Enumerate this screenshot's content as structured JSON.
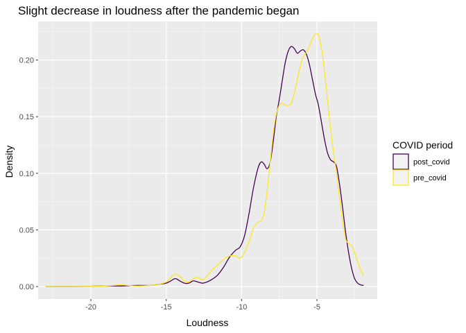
{
  "chart_data": {
    "type": "area",
    "title": "Slight decrease in loudness after the pandemic began",
    "xlabel": "Loudness",
    "ylabel": "Density",
    "xlim": [
      -23.5,
      -1.0
    ],
    "ylim": [
      -0.011,
      0.234
    ],
    "x_ticks": [
      -20,
      -15,
      -10,
      -5
    ],
    "x_tick_labels": [
      "-20",
      "-15",
      "-10",
      "-5"
    ],
    "y_ticks": [
      0.0,
      0.05,
      0.1,
      0.15,
      0.2
    ],
    "y_tick_labels": [
      "0.00",
      "0.05",
      "0.10",
      "0.15",
      "0.20"
    ],
    "grid": true,
    "legend": {
      "title": "COVID period",
      "position": "right"
    },
    "series": [
      {
        "name": "post_covid",
        "color": "#440154",
        "x": [
          -23,
          -21,
          -19,
          -18,
          -17,
          -16,
          -15.5,
          -15,
          -14.7,
          -14.4,
          -14.1,
          -13.8,
          -13.5,
          -13.2,
          -12.9,
          -12.6,
          -12.3,
          -12,
          -11.6,
          -11.2,
          -10.8,
          -10.4,
          -10.1,
          -9.8,
          -9.5,
          -9.2,
          -8.9,
          -8.7,
          -8.5,
          -8.3,
          -8.1,
          -7.9,
          -7.7,
          -7.5,
          -7.3,
          -7.1,
          -6.9,
          -6.7,
          -6.5,
          -6.3,
          -6.1,
          -5.9,
          -5.7,
          -5.5,
          -5.3,
          -5.1,
          -4.9,
          -4.7,
          -4.5,
          -4.3,
          -4.1,
          -3.9,
          -3.7,
          -3.5,
          -3.3,
          -3.1,
          -2.9,
          -2.7,
          -2.5,
          -2.3,
          -2.1,
          -1.9
        ],
        "y": [
          0.0,
          0.0,
          0.0005,
          0.0005,
          0.001,
          0.001,
          0.002,
          0.003,
          0.005,
          0.007,
          0.005,
          0.003,
          0.003,
          0.005,
          0.004,
          0.003,
          0.004,
          0.006,
          0.01,
          0.017,
          0.026,
          0.032,
          0.035,
          0.045,
          0.065,
          0.088,
          0.105,
          0.11,
          0.108,
          0.104,
          0.11,
          0.128,
          0.15,
          0.165,
          0.182,
          0.198,
          0.208,
          0.212,
          0.21,
          0.206,
          0.208,
          0.209,
          0.205,
          0.196,
          0.183,
          0.17,
          0.16,
          0.145,
          0.13,
          0.118,
          0.112,
          0.11,
          0.106,
          0.09,
          0.07,
          0.048,
          0.03,
          0.016,
          0.007,
          0.003,
          0.0015,
          0.001
        ]
      },
      {
        "name": "pre_covid",
        "color": "#fde725",
        "x": [
          -23,
          -21,
          -19,
          -18,
          -17,
          -16,
          -15.5,
          -15,
          -14.7,
          -14.4,
          -14.1,
          -13.8,
          -13.5,
          -13.2,
          -12.9,
          -12.6,
          -12.3,
          -12,
          -11.6,
          -11.2,
          -10.8,
          -10.4,
          -10.1,
          -9.8,
          -9.5,
          -9.2,
          -8.9,
          -8.7,
          -8.5,
          -8.3,
          -8.1,
          -7.9,
          -7.7,
          -7.5,
          -7.3,
          -7.1,
          -6.9,
          -6.7,
          -6.5,
          -6.3,
          -6.1,
          -5.9,
          -5.7,
          -5.5,
          -5.3,
          -5.1,
          -4.9,
          -4.7,
          -4.5,
          -4.3,
          -4.1,
          -3.9,
          -3.7,
          -3.5,
          -3.3,
          -3.1,
          -2.9,
          -2.7,
          -2.5,
          -2.3,
          -2.1,
          -1.9
        ],
        "y": [
          0.0,
          0.0,
          0.0005,
          0.0015,
          0.0005,
          0.001,
          0.002,
          0.004,
          0.008,
          0.011,
          0.009,
          0.005,
          0.004,
          0.007,
          0.008,
          0.006,
          0.009,
          0.014,
          0.019,
          0.024,
          0.027,
          0.027,
          0.025,
          0.03,
          0.04,
          0.052,
          0.057,
          0.058,
          0.065,
          0.085,
          0.11,
          0.135,
          0.152,
          0.16,
          0.162,
          0.16,
          0.16,
          0.162,
          0.171,
          0.183,
          0.195,
          0.203,
          0.207,
          0.212,
          0.219,
          0.223,
          0.222,
          0.21,
          0.19,
          0.165,
          0.14,
          0.118,
          0.1,
          0.078,
          0.058,
          0.042,
          0.038,
          0.036,
          0.03,
          0.022,
          0.015,
          0.009
        ]
      }
    ]
  }
}
